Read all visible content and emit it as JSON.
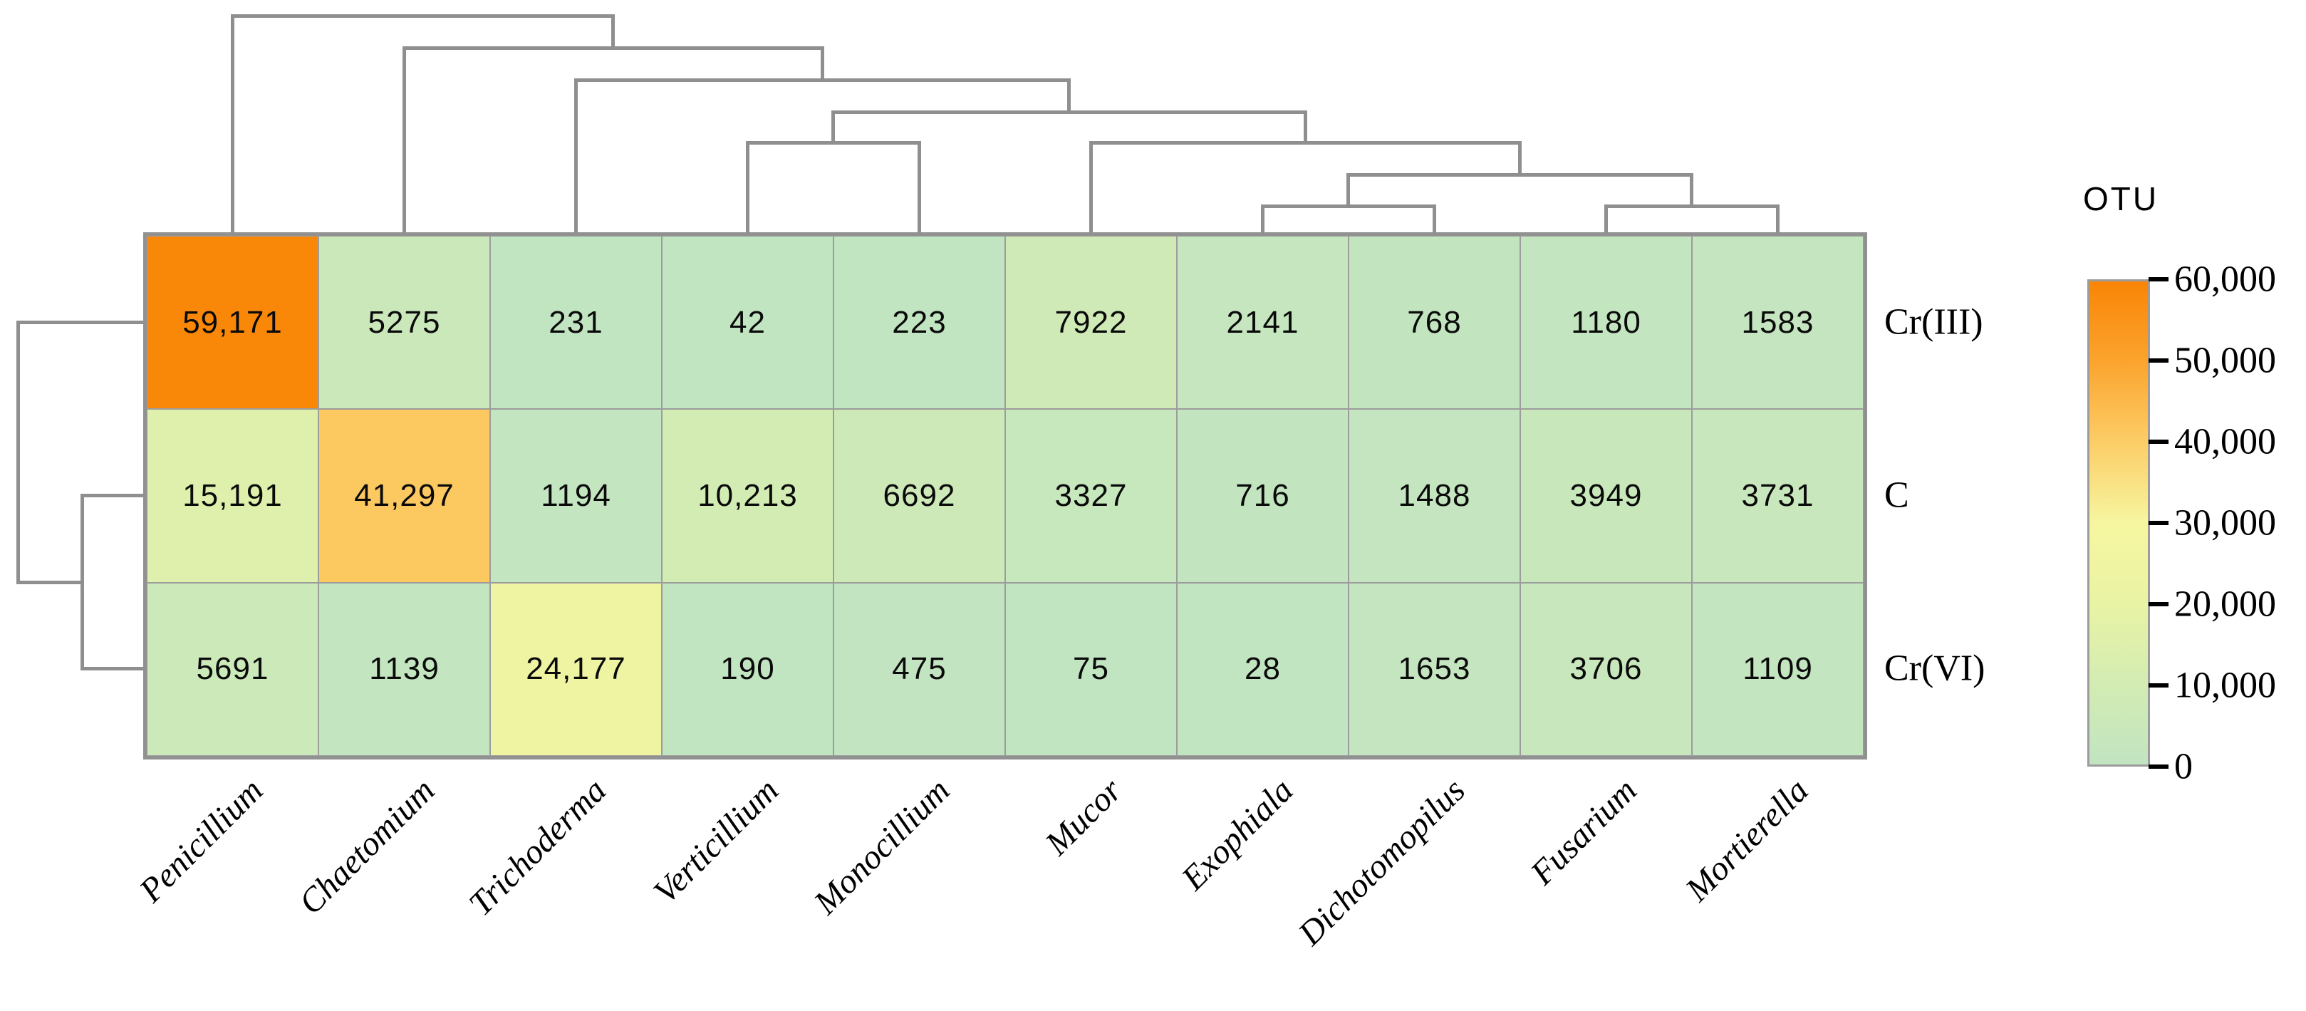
{
  "chart_data": {
    "type": "heatmap",
    "rows": [
      "Cr(III)",
      "C",
      "Cr(VI)"
    ],
    "columns": [
      "Penicillium",
      "Chaetomium",
      "Trichoderma",
      "Verticillium",
      "Monocillium",
      "Mucor",
      "Exophiala",
      "Dichotomopilus",
      "Fusarium",
      "Mortierella"
    ],
    "values": [
      [
        59171,
        5275,
        231,
        42,
        223,
        7922,
        2141,
        768,
        1180,
        1583
      ],
      [
        15191,
        41297,
        1194,
        10213,
        6692,
        3327,
        716,
        1488,
        3949,
        3731
      ],
      [
        5691,
        1139,
        24177,
        190,
        475,
        75,
        28,
        1653,
        3706,
        1109
      ]
    ],
    "cell_labels": [
      [
        "59,171",
        "5275",
        "231",
        "42",
        "223",
        "7922",
        "2141",
        "768",
        "1180",
        "1583"
      ],
      [
        "15,191",
        "41,297",
        "1194",
        "10,213",
        "6692",
        "3327",
        "716",
        "1488",
        "3949",
        "3731"
      ],
      [
        "5691",
        "1139",
        "24,177",
        "190",
        "475",
        "75",
        "28",
        "1653",
        "3706",
        "1109"
      ]
    ],
    "colorbar": {
      "title": "OTU",
      "min": 0,
      "max": 60000,
      "tick_values": [
        60000,
        50000,
        40000,
        30000,
        20000,
        10000,
        0
      ],
      "tick_labels": [
        "60,000",
        "50,000",
        "40,000",
        "30,000",
        "20,000",
        "10,000",
        "0"
      ],
      "gradient_stops": [
        {
          "value": 0,
          "color": "#c1e4c1"
        },
        {
          "value": 10000,
          "color": "#d3ecb3"
        },
        {
          "value": 20000,
          "color": "#e9f3a4"
        },
        {
          "value": 30000,
          "color": "#f6f6a0"
        },
        {
          "value": 40000,
          "color": "#fccd67"
        },
        {
          "value": 50000,
          "color": "#fba42e"
        },
        {
          "value": 60000,
          "color": "#f98506"
        }
      ]
    },
    "row_dendrogram": {
      "structure": "(Cr(III),(C,Cr(VI)))"
    },
    "col_dendrogram": {
      "structure": "(Penicillium,(Chaetomium,(Trichoderma,((Verticillium,Monocillium),(Mucor,((Exophiala,Dichotomopilus),(Fusarium,Mortierella)))))))"
    },
    "grid_color": "#9c9c9c",
    "dendrogram_color": "#8f8f8f",
    "text_color": "#000000",
    "legend_position": "right",
    "grid_on": true
  }
}
